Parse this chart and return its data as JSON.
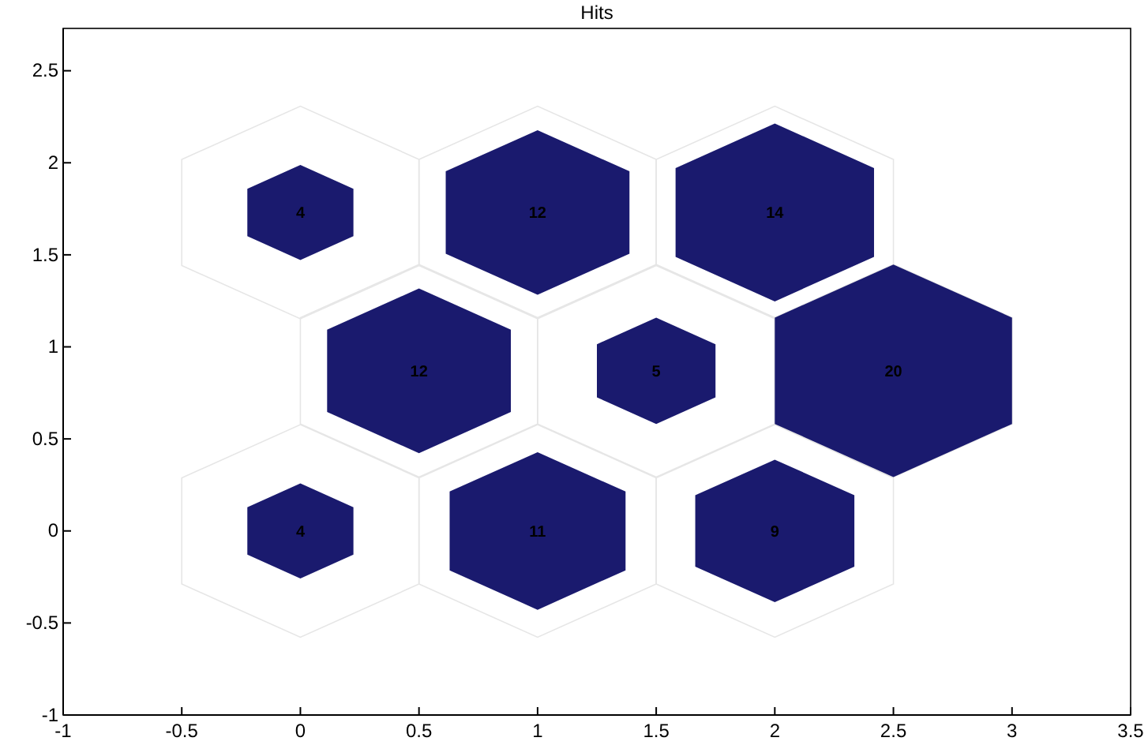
{
  "chart_data": {
    "type": "bubble",
    "title": "Hits",
    "x": [
      0,
      1,
      2,
      0.5,
      1.5,
      2.5,
      0,
      1,
      2
    ],
    "values": [
      0,
      0,
      0,
      0.87,
      0.87,
      0.87,
      1.73,
      1.73,
      1.73
    ],
    "sizes": [
      0.2,
      0.55,
      0.45,
      0.6,
      0.25,
      1,
      0.2,
      0.6,
      0.7
    ],
    "annotations": [
      {
        "text": "4",
        "x": 0,
        "y": 0
      },
      {
        "text": "11",
        "x": 1,
        "y": 0
      },
      {
        "text": "9",
        "x": 2,
        "y": 0
      },
      {
        "text": "12",
        "x": 0.5,
        "y": 0.87
      },
      {
        "text": "5",
        "x": 1.5,
        "y": 0.87
      },
      {
        "text": "20",
        "x": 2.5,
        "y": 0.87
      },
      {
        "text": "4",
        "x": 0,
        "y": 1.73
      },
      {
        "text": "12",
        "x": 1,
        "y": 1.73
      },
      {
        "text": "14",
        "x": 2,
        "y": 1.73
      }
    ],
    "color": "#1a1a6e",
    "xlim": [
      -1,
      3.5
    ],
    "xticks": [
      -1,
      -0.5,
      0,
      0.5,
      1,
      1.5,
      2,
      2.5,
      3,
      3.5
    ],
    "ylim": [
      -1,
      2.73
    ],
    "yticks": [
      -1,
      -0.5,
      0,
      0.5,
      1,
      1.5,
      2,
      2.5
    ],
    "grid": false
  }
}
